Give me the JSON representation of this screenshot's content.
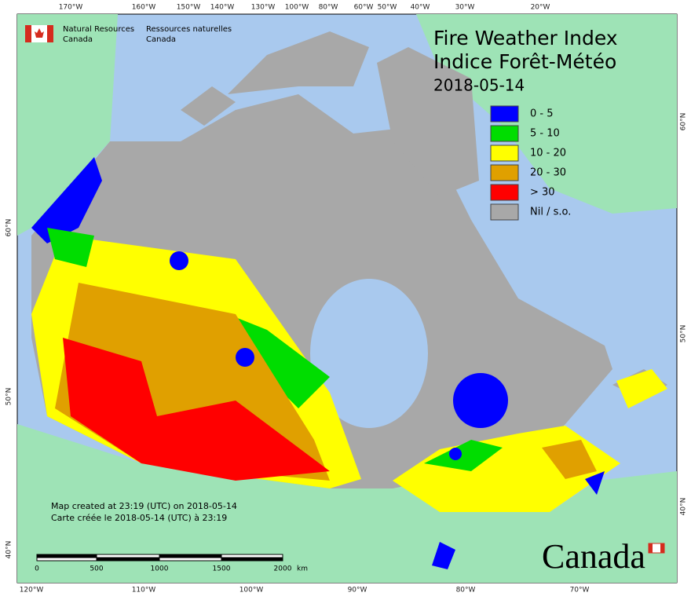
{
  "header": {
    "title_en": "Fire Weather Index",
    "title_fr": "Indice Forêt-Météo",
    "date": "2018-05-14"
  },
  "agency": {
    "en": [
      "Natural Resources",
      "Canada"
    ],
    "fr": [
      "Ressources naturelles",
      "Canada"
    ]
  },
  "legend": [
    {
      "label": "0 - 5",
      "color": "#0000ff"
    },
    {
      "label": "5 - 10",
      "color": "#00dd00"
    },
    {
      "label": "10 - 20",
      "color": "#ffff00"
    },
    {
      "label": "20 - 30",
      "color": "#e0a000"
    },
    {
      "label": "> 30",
      "color": "#ff0000"
    },
    {
      "label": "Nil / s.o.",
      "color": "#a8a8a8"
    }
  ],
  "notes": [
    "Map created at 23:19 (UTC) on 2018-05-14",
    "Carte créée le 2018-05-14 (UTC) à 23:19"
  ],
  "scale_bar": {
    "labels": [
      "0",
      "500",
      "1000",
      "1500",
      "2000"
    ],
    "unit": "km"
  },
  "graticule": {
    "top": [
      "170°W",
      "160°W",
      "150°W",
      "140°W",
      "130°W",
      "100°W",
      "80°W",
      "60°W",
      "50°W",
      "40°W",
      "30°W",
      "20°W"
    ],
    "bottom": [
      "120°W",
      "110°W",
      "100°W",
      "90°W",
      "80°W",
      "70°W"
    ],
    "left": [
      "60°N",
      "50°N",
      "40°N"
    ],
    "right": [
      "60°N",
      "50°N",
      "40°N"
    ]
  },
  "wordmark": "Canada"
}
